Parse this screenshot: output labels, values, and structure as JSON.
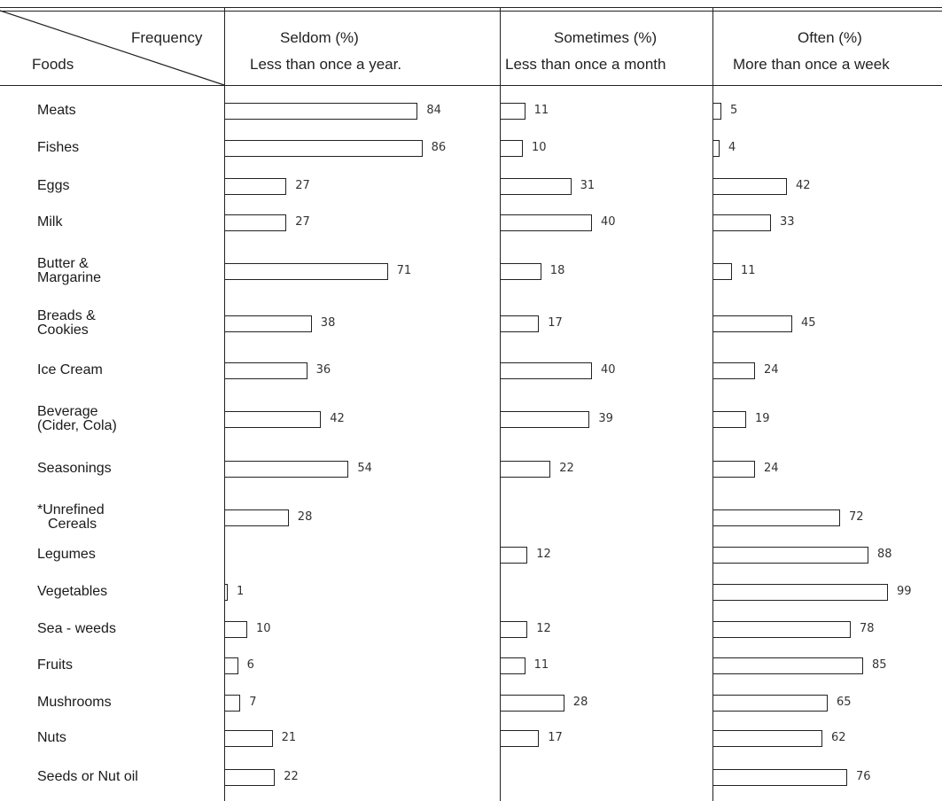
{
  "chart_data": {
    "type": "bar",
    "header": {
      "corner_top": "Frequency",
      "corner_bottom": "Foods"
    },
    "columns": [
      {
        "title": "Seldom (%)",
        "subtitle": "Less than once a year."
      },
      {
        "title": "Sometimes (%)",
        "subtitle": "Less than once a month"
      },
      {
        "title": "Often (%)",
        "subtitle": "More than once a week"
      }
    ],
    "categories": [
      [
        "Meats"
      ],
      [
        "Fishes"
      ],
      [
        "Eggs"
      ],
      [
        "Milk"
      ],
      [
        "Butter &",
        "Margarine"
      ],
      [
        "Breads &",
        "Cookies"
      ],
      [
        "Ice Cream"
      ],
      [
        "Beverage",
        "(Cider, Cola)"
      ],
      [
        "Seasonings"
      ],
      [
        "*Unrefined",
        "Cereals"
      ],
      [
        "Legumes"
      ],
      [
        "Vegetables"
      ],
      [
        "Sea - weeds"
      ],
      [
        "Fruits"
      ],
      [
        "Mushrooms"
      ],
      [
        "Nuts"
      ],
      [
        "Seeds or Nut oil"
      ]
    ],
    "series": [
      {
        "name": "Seldom (%)",
        "values": [
          84,
          86,
          27,
          27,
          71,
          38,
          36,
          42,
          54,
          28,
          null,
          1,
          10,
          6,
          7,
          21,
          22
        ]
      },
      {
        "name": "Sometimes (%)",
        "values": [
          11,
          10,
          31,
          40,
          18,
          17,
          40,
          39,
          22,
          null,
          12,
          null,
          12,
          11,
          28,
          17,
          null
        ]
      },
      {
        "name": "Often (%)",
        "values": [
          5,
          4,
          42,
          33,
          11,
          45,
          24,
          19,
          24,
          72,
          88,
          99,
          78,
          85,
          65,
          62,
          76
        ]
      }
    ],
    "xlim": [
      0,
      100
    ]
  }
}
